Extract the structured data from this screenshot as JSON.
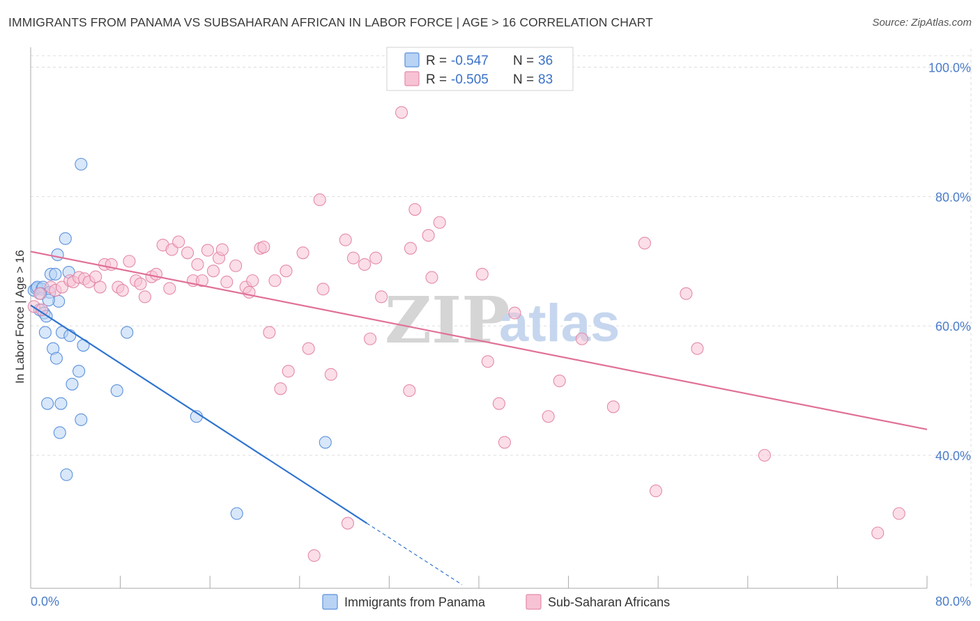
{
  "title": "IMMIGRANTS FROM PANAMA VS SUBSAHARAN AFRICAN IN LABOR FORCE | AGE > 16 CORRELATION CHART",
  "source": "Source: ZipAtlas.com",
  "watermark": {
    "zip": "ZIP",
    "atlas": "atlas"
  },
  "colors": {
    "blue_fill": "#b8d3f4",
    "blue_stroke": "#5b91dc",
    "blue_line": "#2f74d0",
    "pink_fill": "#f7c3d4",
    "pink_stroke": "#e48aaa",
    "pink_line": "#e07098",
    "tick_text": "#4a7cc9",
    "grid": "#dddddd"
  },
  "legend": {
    "entries": [
      {
        "r_label": "R = ",
        "r_value": "-0.547",
        "n_label": "N = ",
        "n_value": "36",
        "color": "blue"
      },
      {
        "r_label": "R = ",
        "r_value": "-0.505",
        "n_label": "N = ",
        "n_value": "83",
        "color": "pink"
      }
    ]
  },
  "bottom_legend": [
    "Immigrants from Panama",
    "Sub-Saharan Africans"
  ],
  "chart_data": {
    "type": "scatter",
    "title": "IMMIGRANTS FROM PANAMA VS SUBSAHARAN AFRICAN IN LABOR FORCE | AGE > 16 CORRELATION CHART",
    "xlabel": "",
    "ylabel": "In Labor Force | Age > 16",
    "xlim": [
      0,
      80
    ],
    "ylim": [
      22,
      103
    ],
    "x_tick_labels": [
      "0.0%",
      "80.0%"
    ],
    "y_ticks": [
      40,
      60,
      80,
      100
    ],
    "y_tick_labels": [
      "40.0%",
      "60.0%",
      "80.0%",
      "100.0%"
    ],
    "grid": true,
    "legend_position": "top-center",
    "series": [
      {
        "name": "Immigrants from Panama",
        "color": "blue",
        "points": [
          [
            0.3,
            65.5
          ],
          [
            0.5,
            65.8
          ],
          [
            0.6,
            66.0
          ],
          [
            0.8,
            62.5
          ],
          [
            1.0,
            65.7
          ],
          [
            1.1,
            66.0
          ],
          [
            1.2,
            62.0
          ],
          [
            1.3,
            59.0
          ],
          [
            1.4,
            61.5
          ],
          [
            1.5,
            48.0
          ],
          [
            1.7,
            65.2
          ],
          [
            1.8,
            68.0
          ],
          [
            2.0,
            56.5
          ],
          [
            2.2,
            68.0
          ],
          [
            2.3,
            55.0
          ],
          [
            2.4,
            71.0
          ],
          [
            2.5,
            63.8
          ],
          [
            2.6,
            43.5
          ],
          [
            2.7,
            48.0
          ],
          [
            2.8,
            59.0
          ],
          [
            3.1,
            73.5
          ],
          [
            3.2,
            37.0
          ],
          [
            3.4,
            68.3
          ],
          [
            3.5,
            58.5
          ],
          [
            3.7,
            51.0
          ],
          [
            4.3,
            53.0
          ],
          [
            4.5,
            45.5
          ],
          [
            4.7,
            57.0
          ],
          [
            4.5,
            85.0
          ],
          [
            7.7,
            50.0
          ],
          [
            8.6,
            59.0
          ],
          [
            14.8,
            46.0
          ],
          [
            18.4,
            31.0
          ],
          [
            26.3,
            42.0
          ],
          [
            0.9,
            65.0
          ],
          [
            1.6,
            64.0
          ]
        ],
        "trend": {
          "x": [
            0,
            30
          ],
          "y": [
            63.2,
            29.5
          ],
          "dashed_to": [
            38.5,
            20.0
          ]
        }
      },
      {
        "name": "Sub-Saharan Africans",
        "color": "pink",
        "points": [
          [
            0.3,
            63.0
          ],
          [
            0.8,
            65.0
          ],
          [
            1.0,
            62.5
          ],
          [
            1.8,
            66.0
          ],
          [
            2.2,
            65.5
          ],
          [
            2.8,
            66.0
          ],
          [
            3.5,
            67.0
          ],
          [
            3.8,
            66.8
          ],
          [
            4.3,
            67.5
          ],
          [
            4.8,
            67.3
          ],
          [
            5.2,
            66.8
          ],
          [
            5.8,
            67.6
          ],
          [
            6.2,
            66.0
          ],
          [
            6.6,
            69.5
          ],
          [
            7.2,
            69.5
          ],
          [
            7.8,
            66.0
          ],
          [
            8.2,
            65.5
          ],
          [
            8.8,
            70.0
          ],
          [
            9.4,
            67.0
          ],
          [
            9.8,
            66.5
          ],
          [
            10.2,
            64.5
          ],
          [
            10.8,
            67.6
          ],
          [
            11.2,
            68.0
          ],
          [
            11.8,
            72.5
          ],
          [
            12.4,
            65.8
          ],
          [
            12.6,
            71.8
          ],
          [
            13.2,
            73.0
          ],
          [
            14.0,
            71.3
          ],
          [
            14.5,
            67.0
          ],
          [
            14.9,
            69.5
          ],
          [
            15.3,
            67.0
          ],
          [
            15.8,
            71.7
          ],
          [
            16.3,
            68.5
          ],
          [
            16.8,
            70.5
          ],
          [
            17.1,
            71.8
          ],
          [
            17.5,
            66.8
          ],
          [
            18.3,
            69.3
          ],
          [
            19.2,
            66.0
          ],
          [
            19.5,
            65.2
          ],
          [
            19.8,
            67.0
          ],
          [
            20.5,
            72.0
          ],
          [
            20.8,
            72.2
          ],
          [
            21.3,
            59.0
          ],
          [
            21.8,
            67.0
          ],
          [
            22.3,
            50.3
          ],
          [
            22.8,
            68.5
          ],
          [
            23.0,
            53.0
          ],
          [
            24.3,
            71.3
          ],
          [
            24.8,
            56.5
          ],
          [
            25.3,
            24.5
          ],
          [
            25.8,
            79.5
          ],
          [
            26.1,
            65.7
          ],
          [
            26.8,
            52.5
          ],
          [
            28.1,
            73.3
          ],
          [
            28.3,
            29.5
          ],
          [
            28.8,
            70.5
          ],
          [
            29.8,
            69.5
          ],
          [
            30.3,
            58.0
          ],
          [
            30.8,
            70.5
          ],
          [
            31.3,
            64.5
          ],
          [
            33.1,
            93.0
          ],
          [
            33.8,
            50.0
          ],
          [
            33.9,
            72.0
          ],
          [
            34.3,
            78.0
          ],
          [
            35.5,
            74.0
          ],
          [
            35.8,
            67.5
          ],
          [
            36.5,
            76.0
          ],
          [
            40.3,
            68.0
          ],
          [
            40.8,
            54.5
          ],
          [
            41.8,
            48.0
          ],
          [
            42.3,
            42.0
          ],
          [
            43.2,
            62.0
          ],
          [
            46.2,
            46.0
          ],
          [
            47.2,
            51.5
          ],
          [
            49.2,
            58.0
          ],
          [
            52.0,
            47.5
          ],
          [
            54.8,
            72.8
          ],
          [
            55.8,
            34.5
          ],
          [
            58.5,
            65.0
          ],
          [
            59.5,
            56.5
          ],
          [
            65.5,
            40.0
          ],
          [
            75.6,
            28.0
          ],
          [
            77.5,
            31.0
          ]
        ],
        "trend": {
          "x": [
            0,
            80
          ],
          "y": [
            71.5,
            44.0
          ]
        }
      }
    ]
  }
}
